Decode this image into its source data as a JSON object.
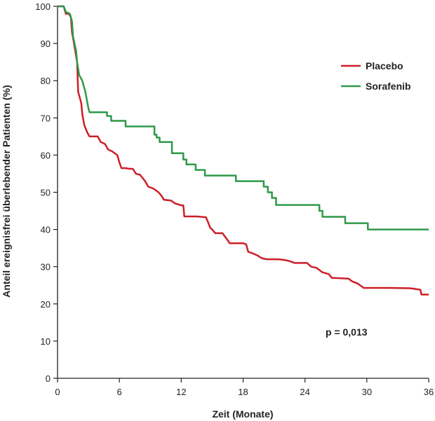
{
  "chart_data": {
    "type": "line",
    "step": true,
    "xlabel": "Zeit (Monate)",
    "ylabel": "Anteil ereignisfrei überlebender Patienten (%)",
    "xlim": [
      0,
      36
    ],
    "ylim": [
      0,
      100
    ],
    "xticks": [
      0,
      6,
      12,
      18,
      24,
      30,
      36
    ],
    "yticks": [
      0,
      10,
      20,
      30,
      40,
      50,
      60,
      70,
      80,
      90,
      100
    ],
    "grid": false,
    "legend_position": "top-right",
    "annotation": "p = 0,013",
    "series": [
      {
        "name": "Placebo",
        "color": "#cc1f27",
        "points": [
          [
            0,
            100
          ],
          [
            0.6,
            100
          ],
          [
            0.8,
            98
          ],
          [
            1.1,
            98
          ],
          [
            1.3,
            97
          ],
          [
            1.4,
            93
          ],
          [
            1.6,
            90
          ],
          [
            1.9,
            85
          ],
          [
            2.0,
            77
          ],
          [
            2.3,
            74
          ],
          [
            2.4,
            71
          ],
          [
            2.6,
            68
          ],
          [
            2.9,
            66
          ],
          [
            3.1,
            65
          ],
          [
            3.4,
            65
          ],
          [
            3.9,
            65
          ],
          [
            4.2,
            63.5
          ],
          [
            4.6,
            63
          ],
          [
            4.9,
            61.5
          ],
          [
            5.3,
            61
          ],
          [
            5.8,
            60
          ],
          [
            6.0,
            58
          ],
          [
            6.2,
            56.5
          ],
          [
            6.6,
            56.5
          ],
          [
            7.0,
            56.3
          ],
          [
            7.3,
            56.3
          ],
          [
            7.6,
            55
          ],
          [
            8.0,
            54.7
          ],
          [
            8.5,
            53
          ],
          [
            8.8,
            51.5
          ],
          [
            9.3,
            51
          ],
          [
            9.8,
            50
          ],
          [
            10.1,
            49
          ],
          [
            10.3,
            48
          ],
          [
            11.0,
            47.8
          ],
          [
            11.4,
            47
          ],
          [
            12.0,
            46.5
          ],
          [
            12.2,
            46.5
          ],
          [
            12.3,
            43.5
          ],
          [
            13.5,
            43.5
          ],
          [
            14.4,
            43.3
          ],
          [
            14.6,
            42
          ],
          [
            14.8,
            40.5
          ],
          [
            15.0,
            40
          ],
          [
            15.3,
            39
          ],
          [
            16.0,
            39
          ],
          [
            16.4,
            37.5
          ],
          [
            16.7,
            36.3
          ],
          [
            18.0,
            36.3
          ],
          [
            18.3,
            36
          ],
          [
            18.5,
            34
          ],
          [
            19.0,
            33.5
          ],
          [
            19.4,
            33
          ],
          [
            19.8,
            32.3
          ],
          [
            20.3,
            32
          ],
          [
            21.4,
            32
          ],
          [
            22.0,
            31.8
          ],
          [
            22.5,
            31.5
          ],
          [
            23.0,
            31
          ],
          [
            24.2,
            31
          ],
          [
            24.6,
            30
          ],
          [
            25.1,
            29.7
          ],
          [
            25.7,
            28.5
          ],
          [
            26.3,
            28
          ],
          [
            26.6,
            27
          ],
          [
            28.2,
            26.8
          ],
          [
            28.6,
            26
          ],
          [
            29.1,
            25.5
          ],
          [
            29.7,
            24.3
          ],
          [
            32.2,
            24.3
          ],
          [
            34.2,
            24.2
          ],
          [
            35.2,
            23.8
          ],
          [
            35.3,
            22.5
          ],
          [
            36.0,
            22.5
          ]
        ]
      },
      {
        "name": "Sorafenib",
        "color": "#2e9a49",
        "points": [
          [
            0,
            100
          ],
          [
            0.6,
            100
          ],
          [
            0.8,
            98.5
          ],
          [
            1.2,
            98
          ],
          [
            1.4,
            96
          ],
          [
            1.5,
            92
          ],
          [
            1.8,
            88
          ],
          [
            1.9,
            85
          ],
          [
            2.1,
            81.5
          ],
          [
            2.4,
            80
          ],
          [
            2.7,
            77
          ],
          [
            2.9,
            74
          ],
          [
            3.0,
            72.5
          ],
          [
            3.1,
            71.5
          ],
          [
            4.8,
            71.5
          ],
          [
            4.8,
            70.5
          ],
          [
            5.2,
            70.5
          ],
          [
            5.2,
            69.2
          ],
          [
            6.6,
            69.2
          ],
          [
            6.6,
            67.7
          ],
          [
            9.4,
            67.7
          ],
          [
            9.4,
            65.5
          ],
          [
            9.6,
            65.5
          ],
          [
            9.6,
            64.7
          ],
          [
            9.9,
            64.7
          ],
          [
            9.9,
            63.5
          ],
          [
            11.1,
            63.5
          ],
          [
            11.1,
            60.5
          ],
          [
            12.2,
            60.5
          ],
          [
            12.2,
            58.8
          ],
          [
            12.5,
            58.8
          ],
          [
            12.5,
            57.5
          ],
          [
            13.4,
            57.5
          ],
          [
            13.4,
            56
          ],
          [
            14.3,
            56
          ],
          [
            14.3,
            54.5
          ],
          [
            17.3,
            54.5
          ],
          [
            17.3,
            53
          ],
          [
            20.0,
            53
          ],
          [
            20.0,
            51.5
          ],
          [
            20.4,
            51.5
          ],
          [
            20.4,
            50
          ],
          [
            20.8,
            50
          ],
          [
            20.8,
            48.5
          ],
          [
            21.2,
            48.5
          ],
          [
            21.2,
            46.6
          ],
          [
            25.4,
            46.6
          ],
          [
            25.4,
            45
          ],
          [
            25.7,
            45
          ],
          [
            25.7,
            43.4
          ],
          [
            27.9,
            43.4
          ],
          [
            27.9,
            41.7
          ],
          [
            30.1,
            41.7
          ],
          [
            30.1,
            40
          ],
          [
            36.0,
            40
          ]
        ]
      }
    ]
  }
}
